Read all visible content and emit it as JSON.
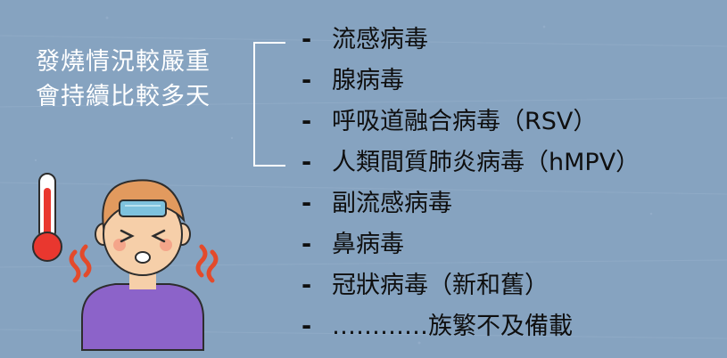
{
  "summary": {
    "line1": "發燒情況較嚴重",
    "line2": "會持續比較多天"
  },
  "virus_list": [
    {
      "marker": "-",
      "text": "流感病毒"
    },
    {
      "marker": "-",
      "text": "腺病毒"
    },
    {
      "marker": "-",
      "text": "呼吸道融合病毒（RSV）"
    },
    {
      "marker": "-",
      "text": "人類間質肺炎病毒（hMPV）"
    },
    {
      "marker": "-",
      "text": "副流感病毒"
    },
    {
      "marker": "-",
      "text": "鼻病毒"
    },
    {
      "marker": "-",
      "text": "冠狀病毒（新和舊）"
    },
    {
      "marker": "-",
      "text": "…………族繁不及備載"
    }
  ],
  "colors": {
    "background": "#86a3c0",
    "text_light": "#ffffff",
    "text_dark": "#0f0f0f",
    "bracket": "#ffffff",
    "thermometer_red": "#e9372f",
    "shirt_purple": "#8c63c9",
    "hair_orange": "#e29a5e",
    "skin": "#f6cfa9",
    "ice_pack_blue": "#7ec2de",
    "fever_waves": "#e34a2b"
  },
  "icons": [
    "thermometer-icon",
    "sick-person-icon",
    "ice-pack-icon",
    "fever-wave-icon"
  ]
}
